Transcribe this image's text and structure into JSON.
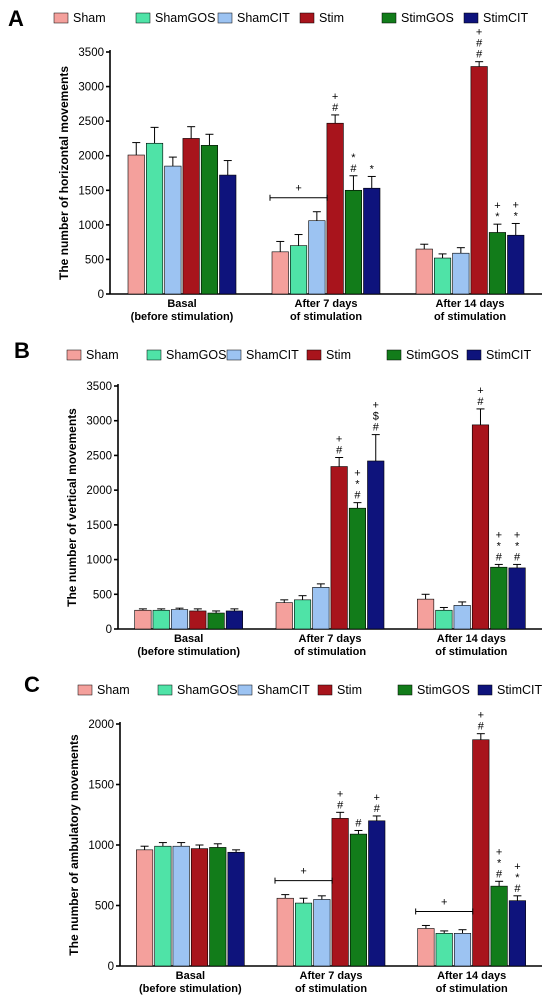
{
  "legend": {
    "series": [
      "Sham",
      "ShamGOS",
      "ShamCIT",
      "Stim",
      "StimGOS",
      "StimCIT"
    ],
    "colors": [
      "#f4a09c",
      "#4fe3a7",
      "#9cc3f2",
      "#a8141c",
      "#127c1a",
      "#0e137c"
    ]
  },
  "chart_data": [
    {
      "type": "bar",
      "panel": "A",
      "ylabel": "The number of horizontal movements",
      "categories": [
        "Basal\n(before stimulation)",
        "After 7 days\nof stimulation",
        "After 14 days\nof stimulation"
      ],
      "ylim": [
        0,
        3500
      ],
      "yticks": [
        0,
        500,
        1000,
        1500,
        2000,
        2500,
        3000,
        3500
      ],
      "series": [
        {
          "name": "Sham",
          "values": [
            2010,
            610,
            650
          ],
          "errors": [
            180,
            150,
            70
          ]
        },
        {
          "name": "ShamGOS",
          "values": [
            2180,
            700,
            520
          ],
          "errors": [
            230,
            160,
            60
          ]
        },
        {
          "name": "ShamCIT",
          "values": [
            1850,
            1060,
            590
          ],
          "errors": [
            130,
            130,
            80
          ]
        },
        {
          "name": "Stim",
          "values": [
            2250,
            2470,
            3290
          ],
          "errors": [
            170,
            120,
            70
          ]
        },
        {
          "name": "StimGOS",
          "values": [
            2150,
            1500,
            890
          ],
          "errors": [
            160,
            210,
            120
          ]
        },
        {
          "name": "StimCIT",
          "values": [
            1720,
            1530,
            850
          ],
          "errors": [
            210,
            170,
            170
          ]
        }
      ],
      "significance": [
        {
          "category": 1,
          "series": 3,
          "marks": [
            "+",
            "#"
          ]
        },
        {
          "category": 1,
          "series": 4,
          "marks": [
            "*",
            "#"
          ]
        },
        {
          "category": 1,
          "series": 5,
          "marks": [
            "*"
          ]
        },
        {
          "category": 2,
          "series": 3,
          "marks": [
            "+",
            "#",
            "#"
          ]
        },
        {
          "category": 2,
          "series": 4,
          "marks": [
            "+",
            "*"
          ]
        },
        {
          "category": 2,
          "series": 5,
          "marks": [
            "+",
            "*"
          ]
        }
      ],
      "brackets": [
        {
          "category": 1,
          "from": 0,
          "to": 2,
          "mark": "+"
        }
      ]
    },
    {
      "type": "bar",
      "panel": "B",
      "ylabel": "The number of vertical movements",
      "categories": [
        "Basal\n(before stimulation)",
        "After 7 days\nof stimulation",
        "After 14 days\nof stimulation"
      ],
      "ylim": [
        0,
        3500
      ],
      "yticks": [
        0,
        500,
        1000,
        1500,
        2000,
        2500,
        3000,
        3500
      ],
      "series": [
        {
          "name": "Sham",
          "values": [
            270,
            380,
            430
          ],
          "errors": [
            20,
            40,
            70
          ]
        },
        {
          "name": "ShamGOS",
          "values": [
            270,
            420,
            270
          ],
          "errors": [
            20,
            60,
            40
          ]
        },
        {
          "name": "ShamCIT",
          "values": [
            280,
            600,
            340
          ],
          "errors": [
            20,
            50,
            50
          ]
        },
        {
          "name": "Stim",
          "values": [
            260,
            2340,
            2940
          ],
          "errors": [
            30,
            130,
            230
          ]
        },
        {
          "name": "StimGOS",
          "values": [
            230,
            1740,
            890
          ],
          "errors": [
            30,
            80,
            40
          ]
        },
        {
          "name": "StimCIT",
          "values": [
            260,
            2420,
            880
          ],
          "errors": [
            30,
            380,
            50
          ]
        }
      ],
      "significance": [
        {
          "category": 1,
          "series": 3,
          "marks": [
            "+",
            "#"
          ]
        },
        {
          "category": 1,
          "series": 4,
          "marks": [
            "+",
            "*",
            "#"
          ]
        },
        {
          "category": 1,
          "series": 5,
          "marks": [
            "+",
            "$",
            "#"
          ]
        },
        {
          "category": 2,
          "series": 3,
          "marks": [
            "+",
            "#"
          ]
        },
        {
          "category": 2,
          "series": 4,
          "marks": [
            "+",
            "*",
            "#"
          ]
        },
        {
          "category": 2,
          "series": 5,
          "marks": [
            "+",
            "*",
            "#"
          ]
        }
      ],
      "brackets": []
    },
    {
      "type": "bar",
      "panel": "C",
      "ylabel": "The number of ambulatory movements",
      "categories": [
        "Basal\n(before stimulation)",
        "After 7 days\nof stimulation",
        "After 14 days\nof stimulation"
      ],
      "ylim": [
        0,
        2000
      ],
      "yticks": [
        0,
        500,
        1000,
        1500,
        2000
      ],
      "series": [
        {
          "name": "Sham",
          "values": [
            960,
            560,
            310
          ],
          "errors": [
            30,
            30,
            25
          ]
        },
        {
          "name": "ShamGOS",
          "values": [
            990,
            520,
            270
          ],
          "errors": [
            30,
            40,
            20
          ]
        },
        {
          "name": "ShamCIT",
          "values": [
            990,
            550,
            270
          ],
          "errors": [
            30,
            30,
            30
          ]
        },
        {
          "name": "Stim",
          "values": [
            970,
            1220,
            1870
          ],
          "errors": [
            30,
            50,
            50
          ]
        },
        {
          "name": "StimGOS",
          "values": [
            980,
            1090,
            660
          ],
          "errors": [
            30,
            30,
            40
          ]
        },
        {
          "name": "StimCIT",
          "values": [
            940,
            1200,
            540
          ],
          "errors": [
            20,
            40,
            40
          ]
        }
      ],
      "significance": [
        {
          "category": 1,
          "series": 3,
          "marks": [
            "+",
            "#"
          ]
        },
        {
          "category": 1,
          "series": 4,
          "marks": [
            "#"
          ]
        },
        {
          "category": 1,
          "series": 5,
          "marks": [
            "+",
            "#"
          ]
        },
        {
          "category": 2,
          "series": 3,
          "marks": [
            "+",
            "#"
          ]
        },
        {
          "category": 2,
          "series": 4,
          "marks": [
            "+",
            "*",
            "#"
          ]
        },
        {
          "category": 2,
          "series": 5,
          "marks": [
            "+",
            "*",
            "#"
          ]
        }
      ],
      "brackets": [
        {
          "category": 1,
          "from": 0,
          "to": 2,
          "mark": "+"
        },
        {
          "category": 2,
          "from": 0,
          "to": 2,
          "mark": "+"
        }
      ]
    }
  ]
}
